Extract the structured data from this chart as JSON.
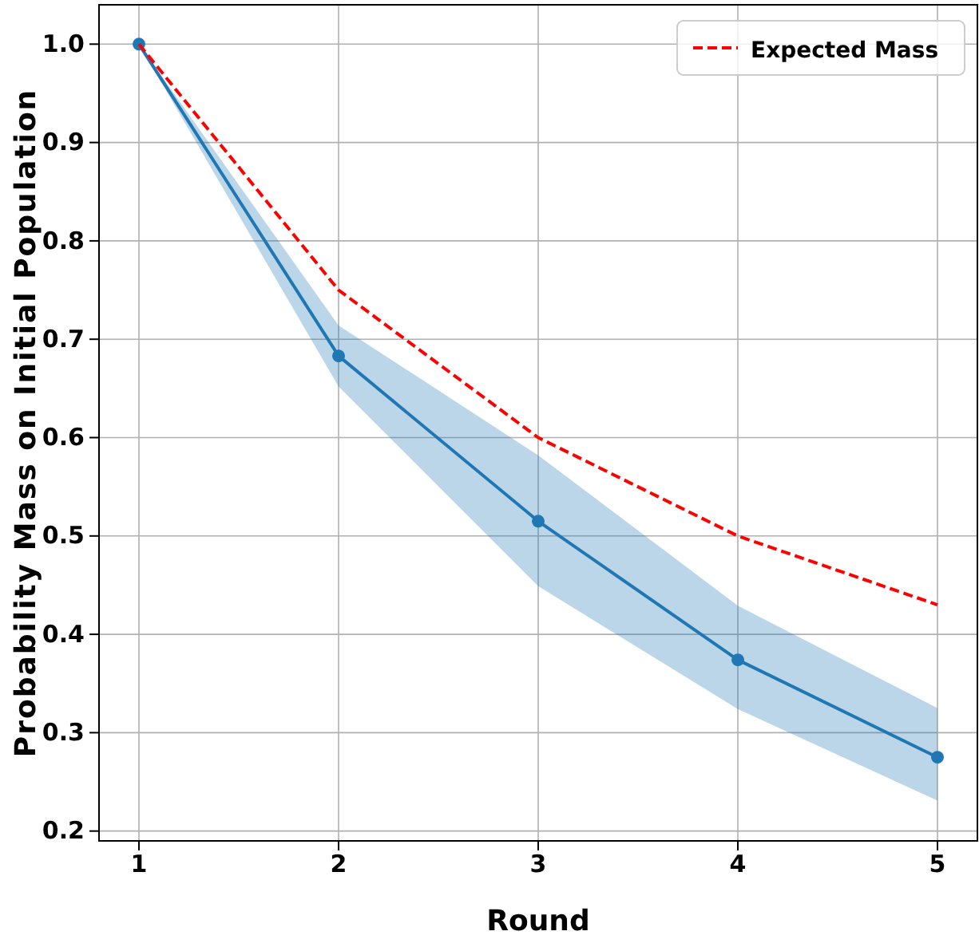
{
  "chart_data": {
    "type": "line",
    "xlabel": "Round",
    "ylabel": "Probability Mass on Initial Population",
    "x": [
      1,
      2,
      3,
      4,
      5
    ],
    "xlim": [
      0.8,
      5.2
    ],
    "xticks": [
      1,
      2,
      3,
      4,
      5
    ],
    "ylim": [
      0.19,
      1.04
    ],
    "yticks": [
      0.2,
      0.3,
      0.4,
      0.5,
      0.6,
      0.7,
      0.8,
      0.9,
      {
        "value": 1.0,
        "label": "1.0"
      }
    ],
    "grid": true,
    "legend": "top right",
    "series": [
      {
        "color": "#1f77b4",
        "values": [
          1.0,
          0.683,
          0.515,
          0.374,
          0.275
        ],
        "lower": [
          1.0,
          0.652,
          0.449,
          0.324,
          0.231
        ],
        "upper": [
          1.0,
          0.714,
          0.582,
          0.429,
          0.325
        ],
        "marker": "circle",
        "line_style": "solid"
      },
      {
        "name": "Expected Mass",
        "color": "#ff0000",
        "values": [
          1.0,
          0.75,
          0.6,
          0.5,
          0.43
        ],
        "marker": "none",
        "line_style": "dashed"
      }
    ]
  }
}
